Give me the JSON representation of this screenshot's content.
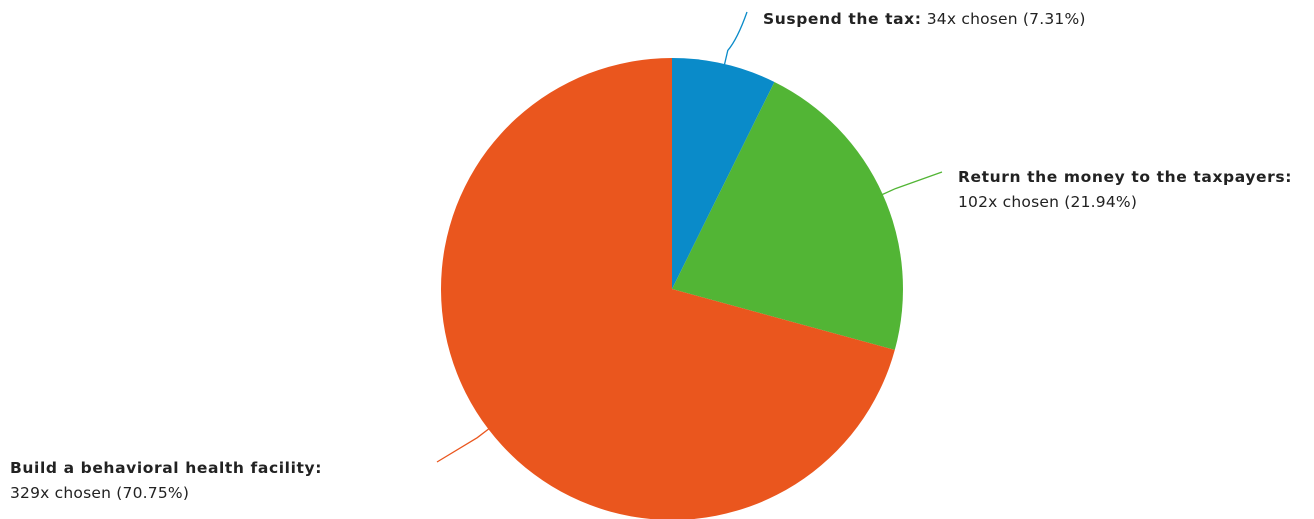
{
  "chart_data": {
    "type": "pie",
    "title": "",
    "slices": [
      {
        "name": "Suspend the tax:",
        "detail": "34x chosen (7.31%)",
        "count": 34,
        "percent": 7.31,
        "color": "#0a8bc9"
      },
      {
        "name": "Return the money to the taxpayers:",
        "detail": "102x chosen (21.94%)",
        "count": 102,
        "percent": 21.94,
        "color": "#52b535"
      },
      {
        "name": "Build a behavioral health facility:",
        "detail": "329x chosen (70.75%)",
        "count": 329,
        "percent": 70.75,
        "color": "#ea561e"
      }
    ],
    "start_angle": "12 o'clock",
    "direction": "clockwise"
  }
}
